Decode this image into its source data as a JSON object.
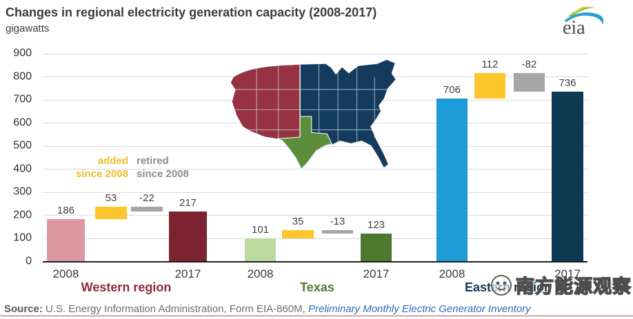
{
  "header": {
    "title": "Changes in regional electricity generation capacity (2008-2017)",
    "subtitle": "gigawatts",
    "logo_text": "eia"
  },
  "chart_data": {
    "type": "bar",
    "subtype": "grouped-waterfall",
    "title": "Changes in regional electricity generation capacity (2008-2017)",
    "ylabel": "gigawatts",
    "xlabel": "",
    "ylim": [
      0,
      900
    ],
    "yticks": [
      0,
      100,
      200,
      300,
      400,
      500,
      600,
      700,
      800,
      900
    ],
    "grid": true,
    "added_color": "#fdc62c",
    "retired_color": "#a6a6a6",
    "legend": {
      "added_line1": "added",
      "added_line2": "since 2008",
      "retired_line1": "retired",
      "retired_line2": "since 2008",
      "added_color": "#f0bd2b",
      "retired_color": "#8c8c8c"
    },
    "regions": [
      {
        "name": "Western region",
        "name_color": "#8f2a3a",
        "start_year": "2008",
        "end_year": "2017",
        "start_value": 186,
        "added": 53,
        "retired": -22,
        "end_value": 217,
        "start_color": "#dd97a1",
        "end_color": "#7c2230"
      },
      {
        "name": "Texas",
        "name_color": "#4d7a2d",
        "start_year": "2008",
        "end_year": "2017",
        "start_value": 101,
        "added": 35,
        "retired": -13,
        "end_value": 123,
        "start_color": "#bada9f",
        "end_color": "#4d7a2d"
      },
      {
        "name": "Eastern region",
        "name_color": "#0e3a53",
        "start_year": "2008",
        "end_year": "2017",
        "start_value": 706,
        "added": 112,
        "retired": -82,
        "end_value": 736,
        "start_color": "#1d9bd7",
        "end_color": "#0e3a53"
      }
    ]
  },
  "map": {
    "west_color": "#963241",
    "east_color": "#143a5c",
    "texas_color": "#5b8d3a",
    "border_color": "#cfe3ea"
  },
  "watermark": {
    "text": "南方能源观察"
  },
  "footer": {
    "source_prefix": "Source:",
    "source_main": " U.S. Energy Information Administration, Form EIA-860M, ",
    "source_italic": "Preliminary Monthly Electric Generator Inventory"
  }
}
